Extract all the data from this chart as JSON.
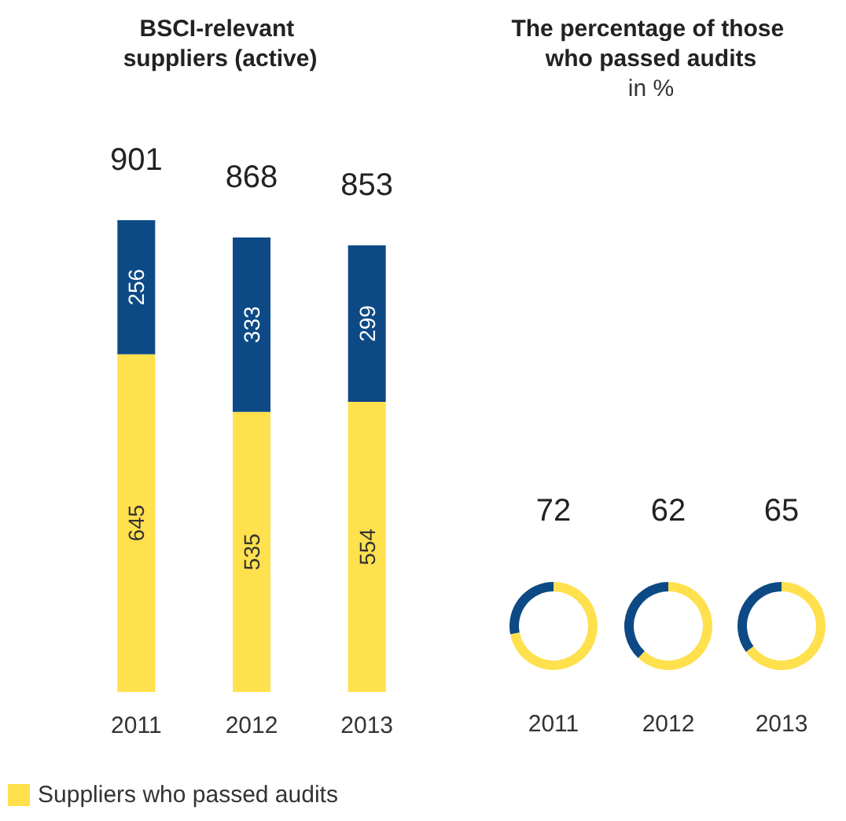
{
  "chart_data": [
    {
      "type": "bar",
      "title": "BSCI-relevant suppliers (active)",
      "categories": [
        "2011",
        "2012",
        "2013"
      ],
      "stacked": true,
      "data_labels": true,
      "totals": [
        "901",
        "868",
        "853"
      ],
      "legend": "bottom",
      "series": [
        {
          "name": "Suppliers who passed audits",
          "color": "#ffe04d",
          "values": [
            645,
            535,
            554
          ]
        },
        {
          "color": "#0d4a85",
          "values": [
            256,
            333,
            299
          ]
        }
      ]
    },
    {
      "type": "other",
      "title": "The percentage of those who passed audits",
      "subtitle": "in %"
    },
    {
      "type": "donut",
      "title": "72",
      "xlabel": "2011",
      "categories": [
        null,
        null
      ],
      "values": [
        72,
        28
      ],
      "colors": [
        "#ffe04d",
        "#0d4a85"
      ]
    },
    {
      "type": "donut",
      "title": "62",
      "xlabel": "2012",
      "categories": [
        null,
        null
      ],
      "values": [
        62,
        38
      ],
      "colors": [
        "#ffe04d",
        "#0d4a85"
      ]
    },
    {
      "type": "donut",
      "title": "65",
      "xlabel": "2013",
      "categories": [
        null,
        null
      ],
      "values": [
        65,
        35
      ],
      "colors": [
        "#ffe04d",
        "#0d4a85"
      ]
    }
  ]
}
